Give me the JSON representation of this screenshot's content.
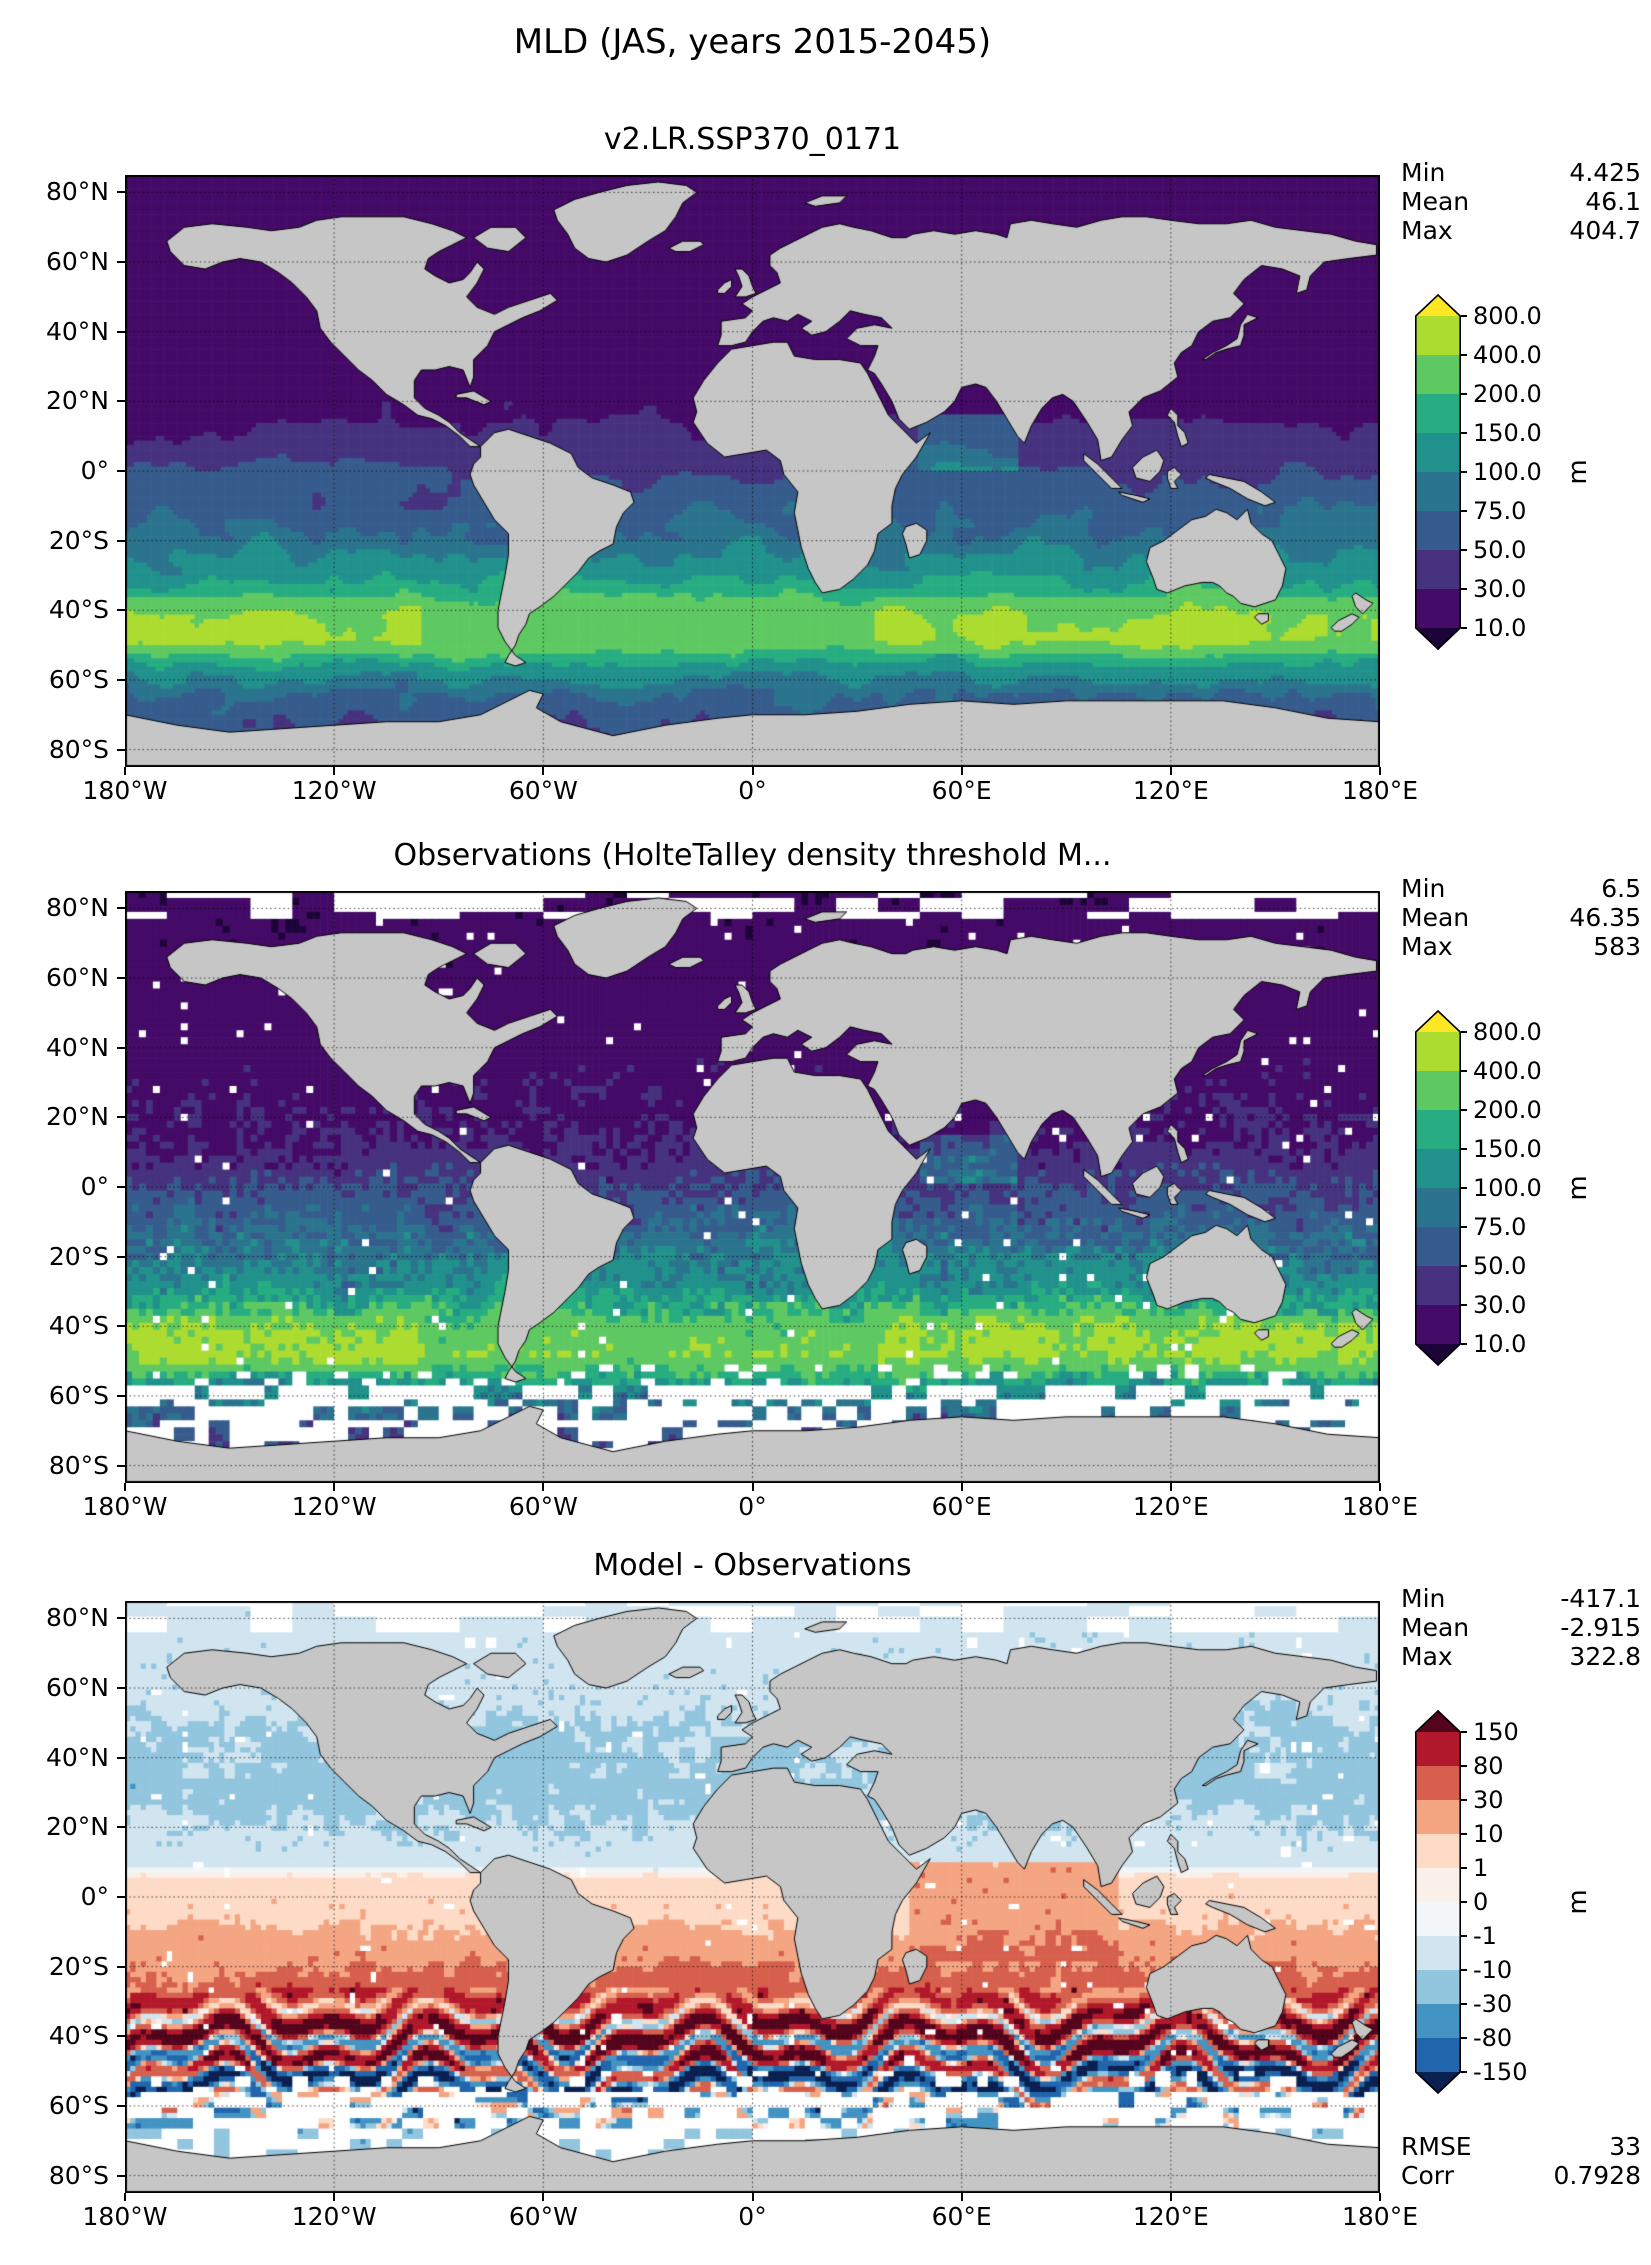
{
  "figure": {
    "title": "MLD (JAS, years 2015-2045)",
    "unit": "m"
  },
  "axes": {
    "lat_ticks": [
      {
        "label": "80°N",
        "lat": 80
      },
      {
        "label": "60°N",
        "lat": 60
      },
      {
        "label": "40°N",
        "lat": 40
      },
      {
        "label": "20°N",
        "lat": 20
      },
      {
        "label": "0°",
        "lat": 0
      },
      {
        "label": "20°S",
        "lat": -20
      },
      {
        "label": "40°S",
        "lat": -40
      },
      {
        "label": "60°S",
        "lat": -60
      },
      {
        "label": "80°S",
        "lat": -80
      }
    ],
    "lon_ticks": [
      {
        "label": "180°W",
        "lon": -180
      },
      {
        "label": "120°W",
        "lon": -120
      },
      {
        "label": "60°W",
        "lon": -60
      },
      {
        "label": "0°",
        "lon": 0
      },
      {
        "label": "60°E",
        "lon": 60
      },
      {
        "label": "120°E",
        "lon": 120
      },
      {
        "label": "180°E",
        "lon": 180
      }
    ]
  },
  "land_color": "#c6c6c6",
  "panels": [
    {
      "title": "v2.LR.SSP370_0171",
      "field": "mld_model",
      "stats": [
        {
          "label": "Min",
          "value": "4.425"
        },
        {
          "label": "Mean",
          "value": "46.1"
        },
        {
          "label": "Max",
          "value": "404.7"
        }
      ],
      "colorbar": {
        "levels": [
          10,
          30,
          50,
          75,
          100,
          150,
          200,
          400,
          800
        ],
        "labels": [
          "800.0",
          "400.0",
          "200.0",
          "150.0",
          "100.0",
          "75.0",
          "50.0",
          "30.0",
          "10.0"
        ],
        "colors_low_to_high": [
          "#1d0438",
          "#440a67",
          "#46327e",
          "#365c8d",
          "#2b748e",
          "#21918c",
          "#27ad81",
          "#5ec962",
          "#addc30",
          "#fde725"
        ]
      }
    },
    {
      "title": "Observations (HolteTalley density threshold M...",
      "field": "mld_obs",
      "stats": [
        {
          "label": "Min",
          "value": "6.5"
        },
        {
          "label": "Mean",
          "value": "46.35"
        },
        {
          "label": "Max",
          "value": "583"
        }
      ],
      "colorbar": {
        "levels": [
          10,
          30,
          50,
          75,
          100,
          150,
          200,
          400,
          800
        ],
        "labels": [
          "800.0",
          "400.0",
          "200.0",
          "150.0",
          "100.0",
          "75.0",
          "50.0",
          "30.0",
          "10.0"
        ],
        "colors_low_to_high": [
          "#1d0438",
          "#440a67",
          "#46327e",
          "#365c8d",
          "#2b748e",
          "#21918c",
          "#27ad81",
          "#5ec962",
          "#addc30",
          "#fde725"
        ]
      }
    },
    {
      "title": "Model - Observations",
      "field": "mld_diff",
      "stats": [
        {
          "label": "Min",
          "value": "-417.1"
        },
        {
          "label": "Mean",
          "value": "-2.915"
        },
        {
          "label": "Max",
          "value": "322.8"
        }
      ],
      "extra_stats": [
        {
          "label": "RMSE",
          "value": "33"
        },
        {
          "label": "Corr",
          "value": "0.7928"
        }
      ],
      "colorbar": {
        "levels": [
          -150,
          -80,
          -30,
          -10,
          -1,
          0,
          1,
          10,
          30,
          80,
          150
        ],
        "labels": [
          "150",
          "80",
          "30",
          "10",
          "1",
          "0",
          "-1",
          "-10",
          "-30",
          "-80",
          "-150"
        ],
        "colors_low_to_high": [
          "#0a2050",
          "#2166ac",
          "#4393c3",
          "#92c5de",
          "#d1e5f0",
          "#f3f6f8",
          "#fbf0e9",
          "#fddbc7",
          "#f4a582",
          "#d6604d",
          "#b2182b",
          "#54041c"
        ]
      }
    }
  ],
  "chart_data": {
    "type": "heatmap",
    "title": "MLD (JAS, years 2015-2045)",
    "projection": "equirectangular world maps, lat 85N-85S, lon 180W-180E",
    "grid": "dotted graticule every 20 deg latitude / 60 deg longitude",
    "colorbar_units": "m",
    "axis_ticks": {
      "lat": [
        "80°N",
        "60°N",
        "40°N",
        "20°N",
        "0°",
        "20°S",
        "40°S",
        "60°S",
        "80°S"
      ],
      "lon": [
        "180°W",
        "120°W",
        "60°W",
        "0°",
        "60°E",
        "120°E",
        "180°E"
      ]
    },
    "panels": [
      {
        "title": "v2.LR.SSP370_0171",
        "variable": "mixed layer depth (m), model",
        "levels": [
          10,
          30,
          50,
          75,
          100,
          150,
          200,
          400,
          800
        ],
        "stats": {
          "min": 4.425,
          "mean": 46.1,
          "max": 404.7
        },
        "pattern": "shallow MLD (10-30 m, dark purple) across the summer northern hemisphere and Arctic; 50-100 m in tropics; deep austral-winter band of 150-800 m (green to yellow-green) along 35-55S, strongest in Indian and Pacific sectors; shallower again toward Antarctica"
      },
      {
        "title": "Observations (HolteTalley density threshold M...",
        "variable": "mixed layer depth (m), observations",
        "levels": [
          10,
          30,
          50,
          75,
          100,
          150,
          200,
          400,
          800
        ],
        "stats": {
          "min": 6.5,
          "mean": 46.35,
          "max": 583
        },
        "pattern": "same zonal structure as model but noisier/gridded; missing data (white) poleward of about 57S, in parts of the Arctic, and scattered cells elsewhere; yellow patches exceed 400-800 m near 45-55S"
      },
      {
        "title": "Model - Observations",
        "variable": "MLD bias (m)",
        "levels": [
          -150,
          -80,
          -30,
          -10,
          -1,
          0,
          1,
          10,
          30,
          80,
          150
        ],
        "stats": {
          "min": -417.1,
          "mean": -2.915,
          "max": 322.8,
          "rmse": 33,
          "corr": 0.7928
        },
        "pattern": "near-zero to weak negative bias (white / pale blue, -1 to -30 m) north of 20S; positive bias (red, +10 to +80 m) in southern subtropics and Indian Ocean; strong alternating dark-red (> +150 m) and dark-blue (< -150 m) zonal bands along 35-60S; white (no obs) south of ~57S"
      }
    ]
  }
}
